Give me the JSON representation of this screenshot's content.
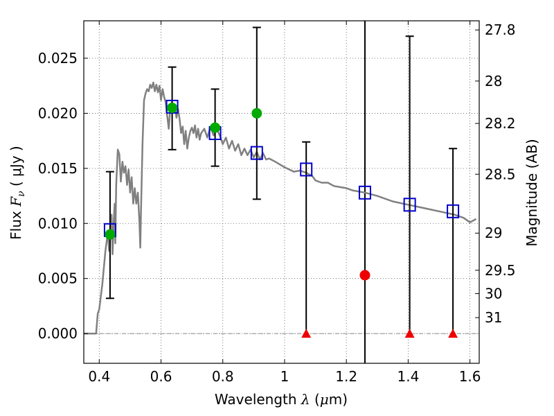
{
  "chart_data": {
    "type": "scatter",
    "title": "",
    "xlabel": {
      "prefix": "Wavelength ",
      "symbol": "λ",
      "unit_open": " (",
      "unit_mu": "μ",
      "unit_rest": "m)"
    },
    "ylabel": {
      "prefix": "Flux ",
      "symbol": "F",
      "subscript": "ν",
      "unit": " ( μJy )"
    },
    "y2label": "Magnitude (AB)",
    "xlim": [
      0.35,
      1.63
    ],
    "ylim": [
      -0.0027,
      0.0284
    ],
    "grid": true,
    "x_ticks": [
      {
        "value": 0.4,
        "label": "0.4"
      },
      {
        "value": 0.6,
        "label": "0.6"
      },
      {
        "value": 0.8,
        "label": "0.8"
      },
      {
        "value": 1.0,
        "label": "1"
      },
      {
        "value": 1.2,
        "label": "1.2"
      },
      {
        "value": 1.4,
        "label": "1.4"
      },
      {
        "value": 1.6,
        "label": "1.6"
      }
    ],
    "y_ticks": [
      {
        "value": 0.0,
        "label": "0.000"
      },
      {
        "value": 0.005,
        "label": "0.005"
      },
      {
        "value": 0.01,
        "label": "0.010"
      },
      {
        "value": 0.015,
        "label": "0.015"
      },
      {
        "value": 0.02,
        "label": "0.020"
      },
      {
        "value": 0.025,
        "label": "0.025"
      }
    ],
    "y2_ticks": [
      {
        "label": "27.8",
        "flux": 0.02757
      },
      {
        "label": "28",
        "flux": 0.02293
      },
      {
        "label": "28.2",
        "flux": 0.01908
      },
      {
        "label": "28.5",
        "flux": 0.01447
      },
      {
        "label": "29",
        "flux": 0.00912
      },
      {
        "label": "29.5",
        "flux": 0.00575
      },
      {
        "label": "30",
        "flux": 0.00363
      },
      {
        "label": "31",
        "flux": 0.00145
      }
    ],
    "vertical_line": {
      "x": 1.26,
      "color": "#000000"
    },
    "zero_line": {
      "y": 0.0,
      "color": "#888888",
      "style": "dash-dot"
    },
    "series": [
      {
        "type": "line",
        "color": "#808080",
        "points": [
          [
            0.35,
            0.0
          ],
          [
            0.39,
            0.0
          ],
          [
            0.395,
            0.0018
          ],
          [
            0.4,
            0.0022
          ],
          [
            0.41,
            0.0045
          ],
          [
            0.42,
            0.0075
          ],
          [
            0.428,
            0.0092
          ],
          [
            0.432,
            0.0075
          ],
          [
            0.436,
            0.0092
          ],
          [
            0.44,
            0.0108
          ],
          [
            0.443,
            0.0072
          ],
          [
            0.447,
            0.0102
          ],
          [
            0.45,
            0.0118
          ],
          [
            0.452,
            0.0082
          ],
          [
            0.455,
            0.0135
          ],
          [
            0.46,
            0.0167
          ],
          [
            0.465,
            0.0163
          ],
          [
            0.47,
            0.0138
          ],
          [
            0.475,
            0.0156
          ],
          [
            0.48,
            0.0146
          ],
          [
            0.485,
            0.0152
          ],
          [
            0.49,
            0.0135
          ],
          [
            0.495,
            0.0149
          ],
          [
            0.5,
            0.0128
          ],
          [
            0.505,
            0.0142
          ],
          [
            0.51,
            0.0118
          ],
          [
            0.515,
            0.0132
          ],
          [
            0.52,
            0.0118
          ],
          [
            0.525,
            0.0128
          ],
          [
            0.53,
            0.0102
          ],
          [
            0.533,
            0.0078
          ],
          [
            0.535,
            0.0108
          ],
          [
            0.54,
            0.0172
          ],
          [
            0.545,
            0.0212
          ],
          [
            0.55,
            0.0218
          ],
          [
            0.555,
            0.0222
          ],
          [
            0.56,
            0.022
          ],
          [
            0.565,
            0.0226
          ],
          [
            0.57,
            0.0223
          ],
          [
            0.575,
            0.0228
          ],
          [
            0.58,
            0.022
          ],
          [
            0.585,
            0.0226
          ],
          [
            0.59,
            0.0219
          ],
          [
            0.595,
            0.0225
          ],
          [
            0.6,
            0.0212
          ],
          [
            0.605,
            0.0222
          ],
          [
            0.61,
            0.0215
          ],
          [
            0.615,
            0.021
          ],
          [
            0.62,
            0.0198
          ],
          [
            0.625,
            0.0186
          ],
          [
            0.63,
            0.0205
          ],
          [
            0.635,
            0.021
          ],
          [
            0.64,
            0.0202
          ],
          [
            0.645,
            0.0208
          ],
          [
            0.65,
            0.0196
          ],
          [
            0.655,
            0.0204
          ],
          [
            0.66,
            0.0195
          ],
          [
            0.665,
            0.0182
          ],
          [
            0.67,
            0.0188
          ],
          [
            0.675,
            0.0172
          ],
          [
            0.68,
            0.0184
          ],
          [
            0.685,
            0.0168
          ],
          [
            0.69,
            0.0178
          ],
          [
            0.695,
            0.0184
          ],
          [
            0.7,
            0.0187
          ],
          [
            0.705,
            0.0182
          ],
          [
            0.71,
            0.0189
          ],
          [
            0.715,
            0.0178
          ],
          [
            0.72,
            0.0186
          ],
          [
            0.725,
            0.0176
          ],
          [
            0.73,
            0.0182
          ],
          [
            0.74,
            0.0186
          ],
          [
            0.75,
            0.0178
          ],
          [
            0.76,
            0.0188
          ],
          [
            0.77,
            0.018
          ],
          [
            0.78,
            0.0186
          ],
          [
            0.79,
            0.018
          ],
          [
            0.8,
            0.0172
          ],
          [
            0.81,
            0.0178
          ],
          [
            0.82,
            0.0168
          ],
          [
            0.83,
            0.0175
          ],
          [
            0.84,
            0.0166
          ],
          [
            0.85,
            0.0172
          ],
          [
            0.86,
            0.0162
          ],
          [
            0.87,
            0.0168
          ],
          [
            0.88,
            0.0162
          ],
          [
            0.89,
            0.0167
          ],
          [
            0.9,
            0.016
          ],
          [
            0.91,
            0.0165
          ],
          [
            0.92,
            0.0158
          ],
          [
            0.93,
            0.0164
          ],
          [
            0.94,
            0.0158
          ],
          [
            0.95,
            0.0159
          ],
          [
            0.97,
            0.0156
          ],
          [
            1.0,
            0.0151
          ],
          [
            1.03,
            0.0147
          ],
          [
            1.05,
            0.0148
          ],
          [
            1.07,
            0.0146
          ],
          [
            1.09,
            0.0143
          ],
          [
            1.1,
            0.0139
          ],
          [
            1.12,
            0.0137
          ],
          [
            1.14,
            0.0137
          ],
          [
            1.16,
            0.0134
          ],
          [
            1.18,
            0.0133
          ],
          [
            1.2,
            0.0132
          ],
          [
            1.22,
            0.013
          ],
          [
            1.26,
            0.0128
          ],
          [
            1.3,
            0.0125
          ],
          [
            1.35,
            0.012
          ],
          [
            1.4,
            0.0117
          ],
          [
            1.45,
            0.0114
          ],
          [
            1.5,
            0.0111
          ],
          [
            1.55,
            0.0108
          ],
          [
            1.58,
            0.0105
          ],
          [
            1.6,
            0.0101
          ],
          [
            1.62,
            0.0104
          ]
        ]
      },
      {
        "type": "errorbar",
        "color": "#000000",
        "points": [
          {
            "x": 0.435,
            "y": 0.0091,
            "low": 0.0032,
            "high": 0.0147
          },
          {
            "x": 0.636,
            "y": 0.0204,
            "low": 0.0167,
            "high": 0.0242
          },
          {
            "x": 0.775,
            "y": 0.0187,
            "low": 0.0152,
            "high": 0.0222
          },
          {
            "x": 0.91,
            "y": 0.02,
            "low": 0.0122,
            "high": 0.0278
          },
          {
            "x": 1.07,
            "y": 0.0,
            "low": 0.0,
            "high": 0.0174
          },
          {
            "x": 1.405,
            "y": 0.0,
            "low": 0.0,
            "high": 0.027
          },
          {
            "x": 1.545,
            "y": 0.0,
            "low": 0.0,
            "high": 0.0168
          }
        ]
      },
      {
        "type": "scatter",
        "marker": "open-square",
        "color": "#0000cc",
        "points": [
          [
            0.435,
            0.0094
          ],
          [
            0.636,
            0.0206
          ],
          [
            0.775,
            0.0182
          ],
          [
            0.91,
            0.0164
          ],
          [
            1.07,
            0.0149
          ],
          [
            1.26,
            0.0128
          ],
          [
            1.405,
            0.0117
          ],
          [
            1.545,
            0.0111
          ]
        ]
      },
      {
        "type": "scatter",
        "marker": "filled-circle",
        "color": "#00aa00",
        "points": [
          [
            0.435,
            0.009
          ],
          [
            0.636,
            0.0205
          ],
          [
            0.775,
            0.0187
          ],
          [
            0.91,
            0.02
          ]
        ]
      },
      {
        "type": "scatter",
        "marker": "filled-circle",
        "color": "#ee0000",
        "points": [
          [
            1.26,
            0.0053
          ]
        ]
      },
      {
        "type": "scatter",
        "marker": "triangle-up",
        "color": "#ee0000",
        "points": [
          [
            1.07,
            0.0
          ],
          [
            1.405,
            0.0
          ],
          [
            1.545,
            0.0
          ]
        ]
      }
    ]
  }
}
